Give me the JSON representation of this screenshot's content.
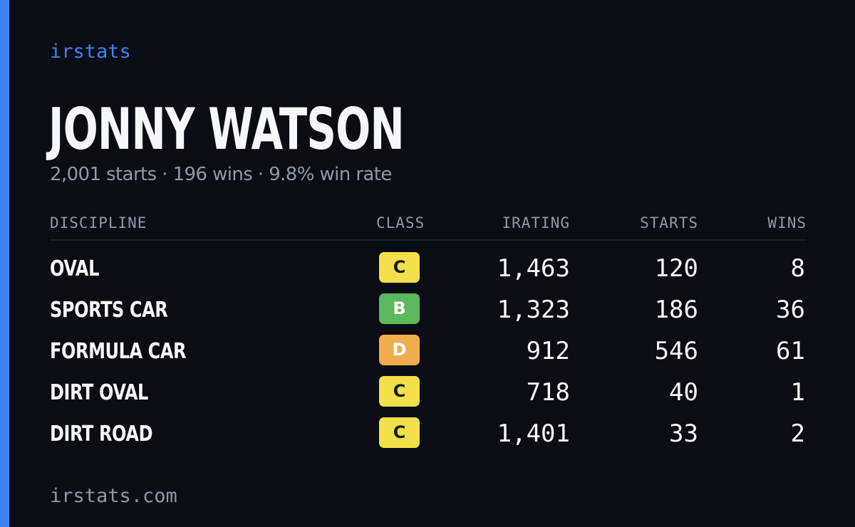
{
  "brand": "irstats",
  "player": {
    "name": "JONNY WATSON",
    "summary": "2,001 starts · 196 wins · 9.8% win rate"
  },
  "table": {
    "headers": {
      "discipline": "DISCIPLINE",
      "class": "CLASS",
      "irating": "IRATING",
      "starts": "STARTS",
      "wins": "WINS"
    },
    "rows": [
      {
        "discipline": "OVAL",
        "class": "C",
        "class_color": "#f1e049",
        "class_text_color": "#1a1a1a",
        "irating": "1,463",
        "starts": "120",
        "wins": "8"
      },
      {
        "discipline": "SPORTS CAR",
        "class": "B",
        "class_color": "#5cb85c",
        "class_text_color": "#ffffff",
        "irating": "1,323",
        "starts": "186",
        "wins": "36"
      },
      {
        "discipline": "FORMULA CAR",
        "class": "D",
        "class_color": "#f0ad4e",
        "class_text_color": "#ffffff",
        "irating": "912",
        "starts": "546",
        "wins": "61"
      },
      {
        "discipline": "DIRT OVAL",
        "class": "C",
        "class_color": "#f1e049",
        "class_text_color": "#1a1a1a",
        "irating": "718",
        "starts": "40",
        "wins": "1"
      },
      {
        "discipline": "DIRT ROAD",
        "class": "C",
        "class_color": "#f1e049",
        "class_text_color": "#1a1a1a",
        "irating": "1,401",
        "starts": "33",
        "wins": "2"
      }
    ]
  },
  "footer": {
    "site": "irstats.com"
  },
  "colors": {
    "background": "#0a0d14",
    "accent": "#3b82f6",
    "text": "#f5f7fa",
    "muted": "#8e99ab"
  }
}
